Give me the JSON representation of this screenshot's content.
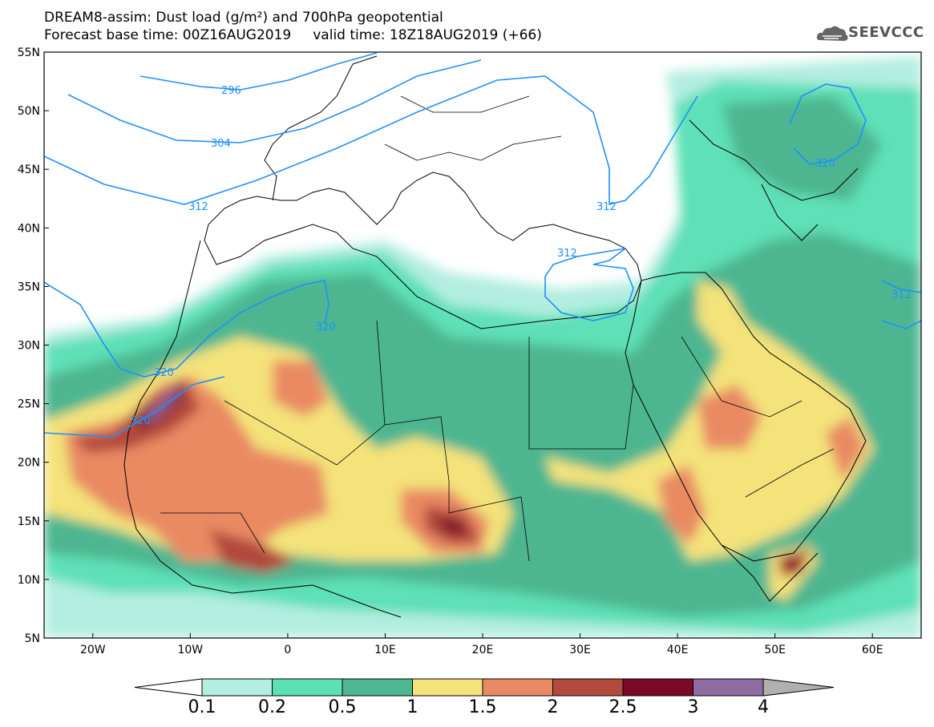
{
  "title": {
    "line1": "DREAM8-assim: Dust load (g/m²) and 700hPa geopotential",
    "line2": "Forecast base time: 00Z16AUG2019     valid time: 18Z18AUG2019 (+66)"
  },
  "logo": {
    "text": "SEEVCCC",
    "icon": "cloud-icon"
  },
  "map": {
    "lon_range": [
      -25,
      65
    ],
    "lat_range": [
      5,
      55
    ],
    "lon_ticks": [
      "20W",
      "10W",
      "0",
      "10E",
      "20E",
      "30E",
      "40E",
      "50E",
      "60E"
    ],
    "lat_ticks": [
      "55N",
      "50N",
      "45N",
      "40N",
      "35N",
      "30N",
      "25N",
      "20N",
      "15N",
      "10N",
      "5N"
    ],
    "contour_labels": [
      "296",
      "304",
      "312",
      "320",
      "312",
      "320",
      "320",
      "320",
      "312",
      "312"
    ]
  },
  "colorbar": {
    "labels": [
      "0.1",
      "0.2",
      "0.5",
      "1",
      "1.5",
      "2",
      "2.5",
      "3",
      "4"
    ],
    "colors": [
      "#b4eee0",
      "#5ee0b6",
      "#4eb690",
      "#f4e27a",
      "#e98a64",
      "#b24a3e",
      "#7a0a28",
      "#8e6ba0"
    ],
    "under_color": "#ffffff",
    "over_color": "#b0b0b0"
  }
}
